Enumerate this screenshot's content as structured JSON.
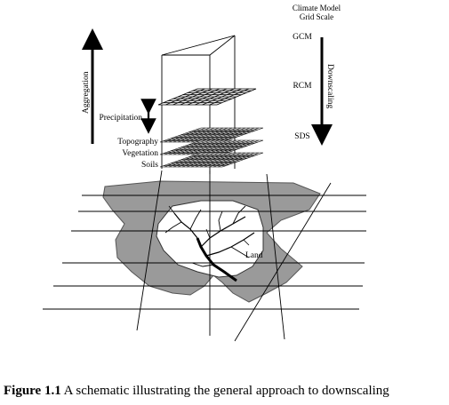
{
  "labels": {
    "climate_model_grid_scale_line1": "Climate Model",
    "climate_model_grid_scale_line2": "Grid Scale",
    "gcm": "GCM",
    "rcm": "RCM",
    "sds": "SDS",
    "downscaling": "Downscaling",
    "aggregation": "Aggregation",
    "precipitation": "Precipitation",
    "topography": "Topography",
    "vegetation": "Vegetation",
    "soils": "Soils",
    "land": "Land"
  },
  "caption": {
    "figure_label": "Figure 1.1",
    "text": " A schematic illustrating the general approach to downscaling"
  },
  "colors": {
    "land_fill": "#9a9a9a",
    "inner_land": "#ffffff",
    "lines": "#000000"
  }
}
